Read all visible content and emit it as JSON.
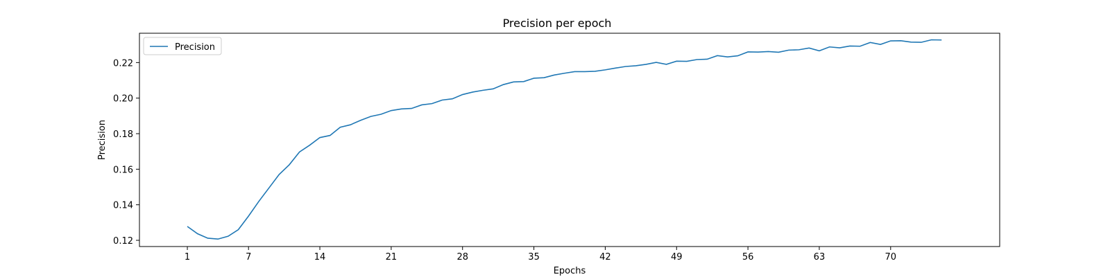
{
  "chart_data": {
    "type": "line",
    "title": "Precision per epoch",
    "xlabel": "Epochs",
    "ylabel": "Precision",
    "xlim": [
      -3.7,
      80.7
    ],
    "ylim": [
      0.1165,
      0.2365
    ],
    "xticks": [
      1,
      7,
      14,
      21,
      28,
      35,
      42,
      49,
      56,
      63,
      70
    ],
    "yticks": [
      0.12,
      0.14,
      0.16,
      0.18,
      0.2,
      0.22
    ],
    "ytick_labels": [
      "0.12",
      "0.14",
      "0.16",
      "0.18",
      "0.20",
      "0.22"
    ],
    "grid": false,
    "legend": {
      "position": "top-left",
      "entries": [
        "Precision"
      ]
    },
    "colors": {
      "series": "#1f77b4"
    },
    "series": [
      {
        "name": "Precision",
        "x": [
          1,
          2,
          3,
          4,
          5,
          6,
          7,
          8,
          9,
          10,
          11,
          12,
          13,
          14,
          15,
          16,
          17,
          18,
          19,
          20,
          21,
          22,
          23,
          24,
          25,
          26,
          27,
          28,
          29,
          30,
          31,
          32,
          33,
          34,
          35,
          36,
          37,
          38,
          39,
          40,
          41,
          42,
          43,
          44,
          45,
          46,
          47,
          48,
          49,
          50,
          51,
          52,
          53,
          54,
          55,
          56,
          57,
          58,
          59,
          60,
          61,
          62,
          63,
          64,
          65,
          66,
          67,
          68,
          69,
          70,
          71,
          72,
          73,
          74,
          75
        ],
        "values": [
          0.1278,
          0.1237,
          0.1212,
          0.1207,
          0.1223,
          0.126,
          0.1336,
          0.1418,
          0.1494,
          0.157,
          0.1625,
          0.1697,
          0.1735,
          0.1778,
          0.179,
          0.1836,
          0.185,
          0.1875,
          0.1897,
          0.1909,
          0.193,
          0.1939,
          0.1942,
          0.1962,
          0.1969,
          0.1989,
          0.1996,
          0.202,
          0.2034,
          0.2044,
          0.2052,
          0.2076,
          0.2091,
          0.2093,
          0.2112,
          0.2115,
          0.213,
          0.214,
          0.2149,
          0.2149,
          0.2151,
          0.2159,
          0.2169,
          0.2178,
          0.2182,
          0.219,
          0.2201,
          0.219,
          0.2208,
          0.2207,
          0.2217,
          0.2219,
          0.2239,
          0.2232,
          0.2238,
          0.226,
          0.2259,
          0.2262,
          0.2258,
          0.227,
          0.2272,
          0.2282,
          0.2266,
          0.2288,
          0.2283,
          0.2293,
          0.2292,
          0.2313,
          0.2302,
          0.2322,
          0.2323,
          0.2315,
          0.2314,
          0.2328,
          0.2327
        ]
      }
    ]
  }
}
